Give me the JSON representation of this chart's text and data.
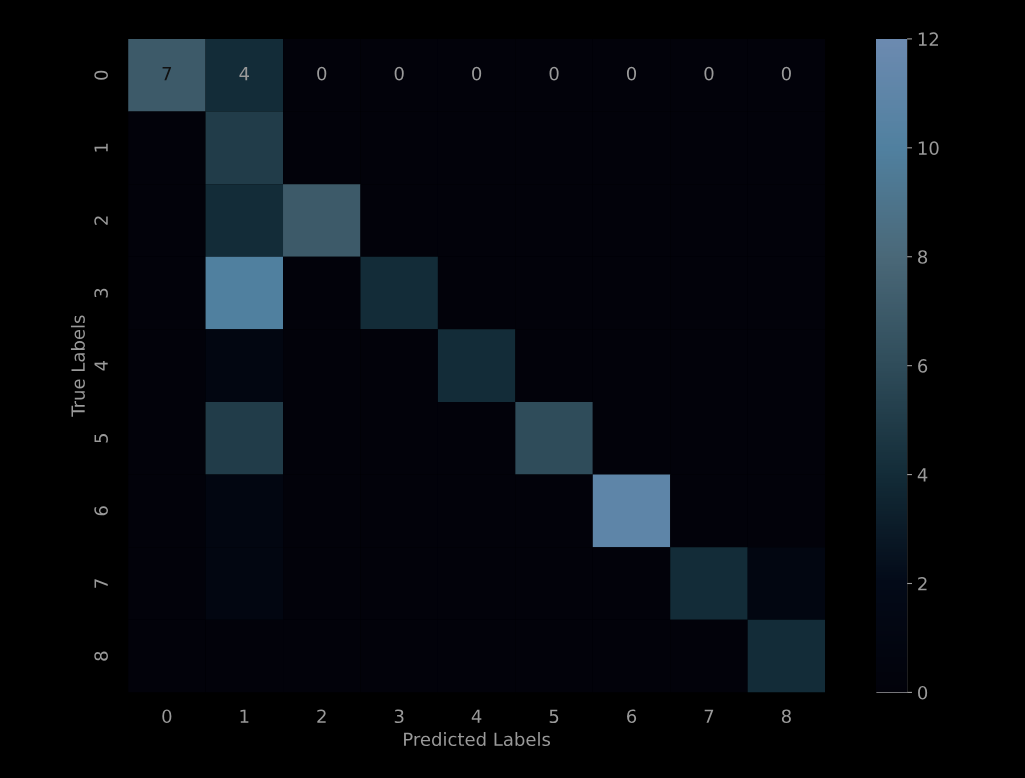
{
  "chart_data": {
    "type": "heatmap",
    "xlabel": "Predicted Labels",
    "ylabel": "True Labels",
    "categories": [
      "0",
      "1",
      "2",
      "3",
      "4",
      "5",
      "6",
      "7",
      "8"
    ],
    "y_categories": [
      "0",
      "1",
      "2",
      "3",
      "4",
      "5",
      "6",
      "7",
      "8"
    ],
    "cells": [
      [
        7,
        4,
        0,
        0,
        0,
        0,
        0,
        0,
        0
      ],
      [
        0,
        5,
        0,
        0,
        0,
        0,
        0,
        0,
        0
      ],
      [
        0,
        4,
        7,
        0,
        0,
        0,
        0,
        0,
        0
      ],
      [
        0,
        10,
        0,
        4,
        0,
        0,
        0,
        0,
        0
      ],
      [
        0,
        1,
        0,
        0,
        4,
        0,
        0,
        0,
        0
      ],
      [
        0,
        5,
        0,
        0,
        0,
        6,
        0,
        0,
        0
      ],
      [
        0,
        1,
        0,
        0,
        0,
        0,
        11,
        0,
        0
      ],
      [
        0,
        1,
        0,
        0,
        0,
        0,
        0,
        4,
        1
      ],
      [
        0,
        0,
        0,
        0,
        0,
        0,
        0,
        0,
        4
      ]
    ],
    "cell_labels": [
      [
        "7",
        "4",
        "0",
        "0",
        "0",
        "0",
        "0",
        "0",
        "0"
      ],
      [
        null,
        null,
        null,
        null,
        null,
        null,
        null,
        null,
        null
      ],
      [
        null,
        null,
        null,
        null,
        null,
        null,
        null,
        null,
        null
      ],
      [
        null,
        null,
        null,
        null,
        null,
        null,
        null,
        null,
        null
      ],
      [
        null,
        null,
        null,
        null,
        null,
        null,
        null,
        null,
        null
      ],
      [
        null,
        null,
        null,
        null,
        null,
        null,
        null,
        null,
        null
      ],
      [
        null,
        null,
        null,
        null,
        null,
        null,
        null,
        null,
        null
      ],
      [
        null,
        null,
        null,
        null,
        null,
        null,
        null,
        null,
        null
      ],
      [
        null,
        null,
        null,
        null,
        null,
        null,
        null,
        null,
        null
      ]
    ],
    "clim": [
      0,
      12
    ],
    "cticks": [
      0,
      2,
      4,
      6,
      8,
      10,
      12
    ]
  }
}
